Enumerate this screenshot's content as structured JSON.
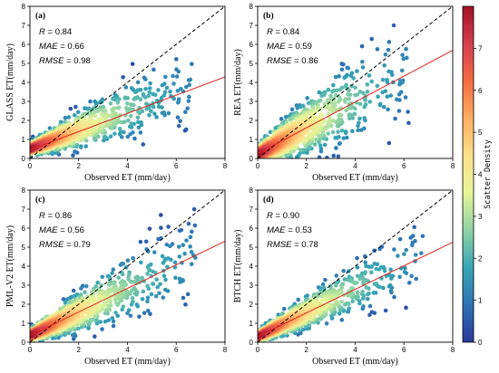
{
  "chart_data": {
    "type": "scatter",
    "colorbar": {
      "label": "Scatter Density",
      "range": [
        0,
        8
      ],
      "ticks": [
        "0",
        "1",
        "2",
        "3",
        "4",
        "5",
        "6",
        "7"
      ],
      "colors": [
        "#2b3a9a",
        "#2f73b5",
        "#37a6b4",
        "#8fd3a3",
        "#e6f598",
        "#fee08b",
        "#fdae61",
        "#f46d43",
        "#d53e4f",
        "#a11224"
      ]
    },
    "panels": [
      {
        "id": "a",
        "letter": "(a)",
        "ylabel": "GLASS ET(mm/day)",
        "xlabel": "Observed ET (mm/day)",
        "xlim": [
          0,
          8
        ],
        "ylim": [
          0,
          8
        ],
        "xticks": [
          "0",
          "2",
          "4",
          "6",
          "8"
        ],
        "yticks": [
          "0",
          "1",
          "2",
          "3",
          "4",
          "5",
          "6",
          "7",
          "8"
        ],
        "stats": {
          "R_label": "R",
          "R": "0.84",
          "MAE_label": "MAE",
          "MAE": "0.66",
          "RMSE_label": "RMSE",
          "RMSE": "0.98"
        },
        "fit": {
          "slope": 0.48,
          "intercept": 0.45
        },
        "cloud": {
          "slope": 0.5,
          "intercept": 0.5,
          "spread": 0.42,
          "xmax": 6.7,
          "scale": 1.7,
          "count": 1300,
          "seed": 11
        }
      },
      {
        "id": "b",
        "letter": "(b)",
        "ylabel": "REA ET(mm/day)",
        "xlabel": "Observed ET (mm/day)",
        "xlim": [
          0,
          8
        ],
        "ylim": [
          0,
          8
        ],
        "xticks": [
          "0",
          "2",
          "4",
          "6",
          "8"
        ],
        "yticks": [
          "0",
          "1",
          "2",
          "3",
          "4",
          "5",
          "6",
          "7",
          "8"
        ],
        "stats": {
          "R_label": "R",
          "R": "0.84",
          "MAE_label": "MAE",
          "MAE": "0.59",
          "RMSE_label": "RMSE",
          "RMSE": "0.86"
        },
        "fit": {
          "slope": 0.68,
          "intercept": 0.25
        },
        "cloud": {
          "slope": 0.72,
          "intercept": 0.2,
          "spread": 0.62,
          "xmax": 6.2,
          "scale": 1.6,
          "count": 1300,
          "seed": 23
        }
      },
      {
        "id": "c",
        "letter": "(c)",
        "ylabel": "PML-V2 ET(mm/day)",
        "xlabel": "Observed ET (mm/day)",
        "xlim": [
          0,
          8
        ],
        "ylim": [
          0,
          8
        ],
        "xticks": [
          "0",
          "2",
          "4",
          "6",
          "8"
        ],
        "yticks": [
          "0",
          "1",
          "2",
          "3",
          "4",
          "5",
          "6",
          "7",
          "8"
        ],
        "stats": {
          "R_label": "R",
          "R": "0.86",
          "MAE_label": "MAE",
          "MAE": "0.56",
          "RMSE_label": "RMSE",
          "RMSE": "0.79"
        },
        "fit": {
          "slope": 0.62,
          "intercept": 0.35
        },
        "cloud": {
          "slope": 0.62,
          "intercept": 0.35,
          "spread": 0.45,
          "xmax": 6.9,
          "scale": 1.75,
          "count": 1300,
          "seed": 37
        }
      },
      {
        "id": "d",
        "letter": "(d)",
        "ylabel": "BTCH ET(mm/day)",
        "xlabel": "Observed ET (mm/day)",
        "xlim": [
          0,
          8
        ],
        "ylim": [
          0,
          8
        ],
        "xticks": [
          "0",
          "2",
          "4",
          "6",
          "8"
        ],
        "yticks": [
          "0",
          "1",
          "2",
          "3",
          "4",
          "5",
          "6",
          "7",
          "8"
        ],
        "stats": {
          "R_label": "R",
          "R": "0.90",
          "MAE_label": "MAE",
          "MAE": "0.53",
          "RMSE_label": "RMSE",
          "RMSE": "0.78"
        },
        "fit": {
          "slope": 0.62,
          "intercept": 0.3
        },
        "cloud": {
          "slope": 0.63,
          "intercept": 0.3,
          "spread": 0.38,
          "xmax": 6.8,
          "scale": 1.7,
          "count": 1300,
          "seed": 53
        }
      }
    ]
  }
}
